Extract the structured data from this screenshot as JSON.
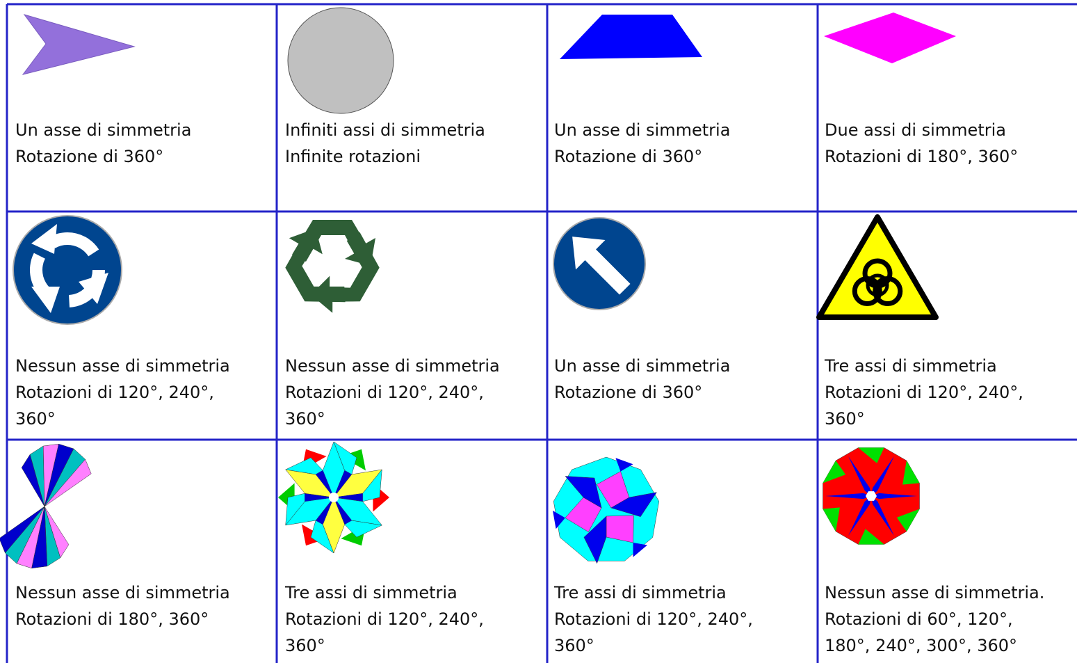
{
  "cells": [
    {
      "lines": [
        "Un asse di simmetria",
        "Rotazione di 360°"
      ]
    },
    {
      "lines": [
        "Infiniti assi di simmetria",
        "Infinite rotazioni"
      ]
    },
    {
      "lines": [
        "Un asse di simmetria",
        "Rotazione di 360°"
      ]
    },
    {
      "lines": [
        "Due assi di simmetria",
        "Rotazioni di 180°,  360°"
      ]
    },
    {
      "lines": [
        "Nessun asse di simmetria",
        "Rotazioni di 120°, 240°,",
        "360°"
      ]
    },
    {
      "lines": [
        "Nessun asse di simmetria",
        "Rotazioni di 120°, 240°,",
        "360°"
      ]
    },
    {
      "lines": [
        "Un asse di simmetria",
        "Rotazione di 360°"
      ]
    },
    {
      "lines": [
        "Tre assi di simmetria",
        "Rotazioni di 120°, 240°,",
        "360°"
      ]
    },
    {
      "lines": [
        "Nessun asse di simmetria",
        "Rotazioni di 180°, 360°"
      ]
    },
    {
      "lines": [
        "Tre assi di simmetria",
        "Rotazioni di 120°, 240°,",
        "360°"
      ]
    },
    {
      "lines": [
        "Tre assi di simmetria",
        "Rotazioni di 120°, 240°,",
        "360°"
      ]
    },
    {
      "lines": [
        "Nessun asse di simmetria.",
        "Rotazioni di 60°, 120°,",
        "180°, 240°, 300°, 360°"
      ]
    }
  ]
}
